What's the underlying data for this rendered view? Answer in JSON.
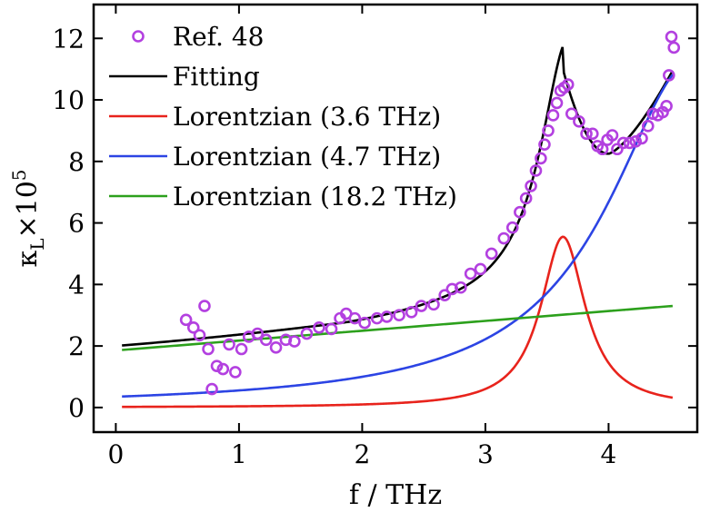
{
  "chart_data": {
    "type": "line",
    "xlabel": "f / THz",
    "ylabel": "κ",
    "ylabel_sub": "L",
    "ylabel_mult": "×10",
    "ylabel_exp": "5",
    "xlim": [
      -0.18,
      4.72
    ],
    "ylim": [
      -0.8,
      13.1
    ],
    "xticks": [
      0,
      1,
      2,
      3,
      4
    ],
    "xtick_labels": [
      "0",
      "1",
      "2",
      "3",
      "4"
    ],
    "yticks": [
      0,
      2,
      4,
      6,
      8,
      10,
      12
    ],
    "ytick_labels": [
      "0",
      "2",
      "4",
      "6",
      "8",
      "10",
      "12"
    ],
    "grid": false,
    "legend_position": "top-left",
    "series": [
      {
        "name": "Ref. 48",
        "kind": "markers",
        "color": "#b340e0",
        "points": [
          [
            0.57,
            2.85
          ],
          [
            0.63,
            2.6
          ],
          [
            0.68,
            2.35
          ],
          [
            0.72,
            3.3
          ],
          [
            0.75,
            1.9
          ],
          [
            0.78,
            0.6
          ],
          [
            0.82,
            1.35
          ],
          [
            0.87,
            1.25
          ],
          [
            0.92,
            2.05
          ],
          [
            0.97,
            1.15
          ],
          [
            1.02,
            1.9
          ],
          [
            1.08,
            2.3
          ],
          [
            1.15,
            2.4
          ],
          [
            1.22,
            2.2
          ],
          [
            1.3,
            1.95
          ],
          [
            1.38,
            2.2
          ],
          [
            1.45,
            2.15
          ],
          [
            1.55,
            2.4
          ],
          [
            1.65,
            2.6
          ],
          [
            1.75,
            2.55
          ],
          [
            1.82,
            2.9
          ],
          [
            1.87,
            3.05
          ],
          [
            1.94,
            2.9
          ],
          [
            2.02,
            2.75
          ],
          [
            2.12,
            2.9
          ],
          [
            2.2,
            2.95
          ],
          [
            2.3,
            3.0
          ],
          [
            2.4,
            3.1
          ],
          [
            2.48,
            3.3
          ],
          [
            2.58,
            3.35
          ],
          [
            2.67,
            3.65
          ],
          [
            2.73,
            3.85
          ],
          [
            2.8,
            3.9
          ],
          [
            2.88,
            4.35
          ],
          [
            2.96,
            4.5
          ],
          [
            3.05,
            5.0
          ],
          [
            3.15,
            5.5
          ],
          [
            3.22,
            5.85
          ],
          [
            3.28,
            6.35
          ],
          [
            3.33,
            6.8
          ],
          [
            3.37,
            7.2
          ],
          [
            3.41,
            7.7
          ],
          [
            3.45,
            8.1
          ],
          [
            3.48,
            8.55
          ],
          [
            3.51,
            9.0
          ],
          [
            3.55,
            9.5
          ],
          [
            3.58,
            9.9
          ],
          [
            3.61,
            10.3
          ],
          [
            3.64,
            10.4
          ],
          [
            3.67,
            10.5
          ],
          [
            3.7,
            9.55
          ],
          [
            3.76,
            9.3
          ],
          [
            3.82,
            8.9
          ],
          [
            3.87,
            8.9
          ],
          [
            3.91,
            8.5
          ],
          [
            3.95,
            8.4
          ],
          [
            3.99,
            8.7
          ],
          [
            4.03,
            8.85
          ],
          [
            4.07,
            8.4
          ],
          [
            4.12,
            8.6
          ],
          [
            4.17,
            8.6
          ],
          [
            4.22,
            8.65
          ],
          [
            4.27,
            8.75
          ],
          [
            4.32,
            9.15
          ],
          [
            4.36,
            9.55
          ],
          [
            4.4,
            9.5
          ],
          [
            4.44,
            9.6
          ],
          [
            4.47,
            9.8
          ],
          [
            4.49,
            10.8
          ],
          [
            4.51,
            12.05
          ],
          [
            4.53,
            11.7
          ]
        ]
      },
      {
        "name": "Fitting",
        "kind": "line",
        "color": "#000000"
      },
      {
        "name": "Lorentzian (3.6 THz)",
        "kind": "line",
        "color": "#e8231c"
      },
      {
        "name": "Lorentzian (4.7 THz)",
        "kind": "line",
        "color": "#2c44e4"
      },
      {
        "name": "Lorentzian (18.2 THz)",
        "kind": "line",
        "color": "#2ca01c"
      }
    ],
    "x_range": [
      0.05,
      4.52
    ]
  }
}
